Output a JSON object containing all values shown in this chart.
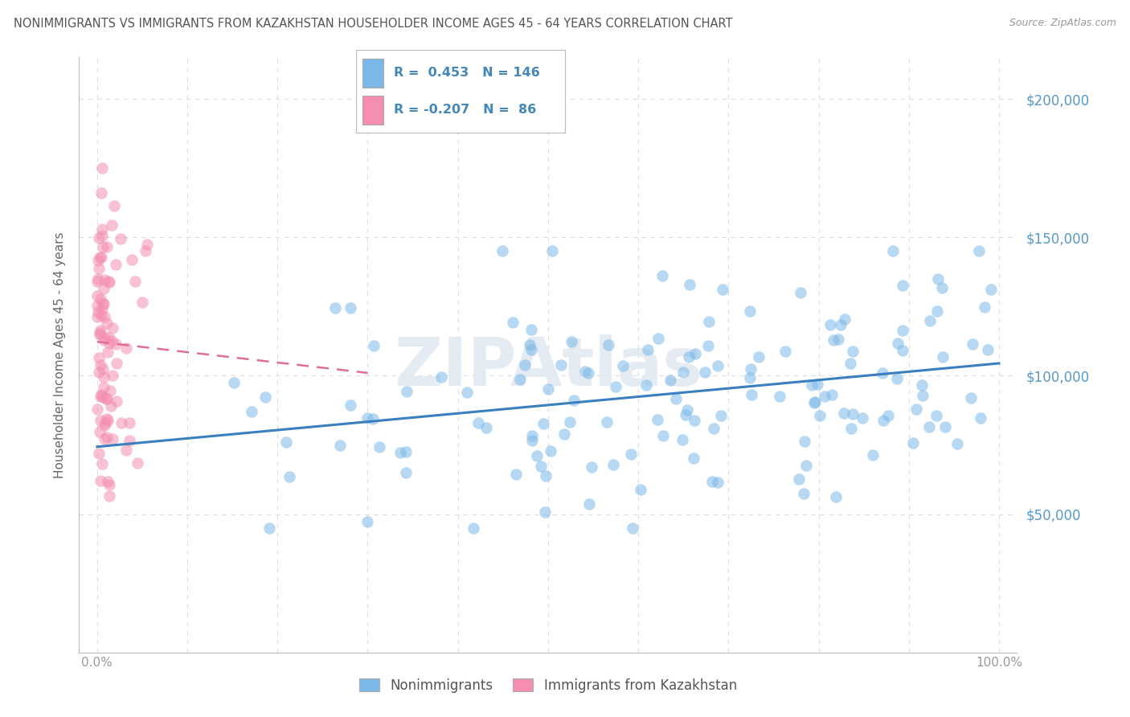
{
  "title": "NONIMMIGRANTS VS IMMIGRANTS FROM KAZAKHSTAN HOUSEHOLDER INCOME AGES 45 - 64 YEARS CORRELATION CHART",
  "source": "Source: ZipAtlas.com",
  "ylabel": "Householder Income Ages 45 - 64 years",
  "r_blue": 0.453,
  "n_blue": 146,
  "r_pink": -0.207,
  "n_pink": 86,
  "blue_color": "#7BB8E8",
  "pink_color": "#F48FB1",
  "blue_line_color": "#3A7FBF",
  "pink_line_color": "#E07090",
  "background_color": "#FFFFFF",
  "grid_color": "#DDDDDD",
  "title_color": "#555555",
  "axis_label_color": "#666666",
  "tick_label_color": "#999999",
  "right_tick_color": "#5599CC",
  "legend_r_color": "#4488BB",
  "xlim": [
    -0.02,
    1.02
  ],
  "ylim": [
    0,
    215000
  ],
  "yticks": [
    0,
    50000,
    100000,
    150000,
    200000
  ],
  "ytick_labels_right": [
    "",
    "$50,000",
    "$100,000",
    "$150,000",
    "$200,000"
  ],
  "xticks": [
    0.0,
    0.1,
    0.2,
    0.3,
    0.4,
    0.5,
    0.6,
    0.7,
    0.8,
    0.9,
    1.0
  ],
  "xtick_labels": [
    "0.0%",
    "",
    "",
    "",
    "",
    "",
    "",
    "",
    "",
    "",
    "100.0%"
  ],
  "figsize": [
    14.06,
    8.92
  ],
  "dpi": 100,
  "watermark_text": "ZIPAtlas",
  "legend_bottom_labels": [
    "Nonimmigrants",
    "Immigrants from Kazakhstan"
  ]
}
